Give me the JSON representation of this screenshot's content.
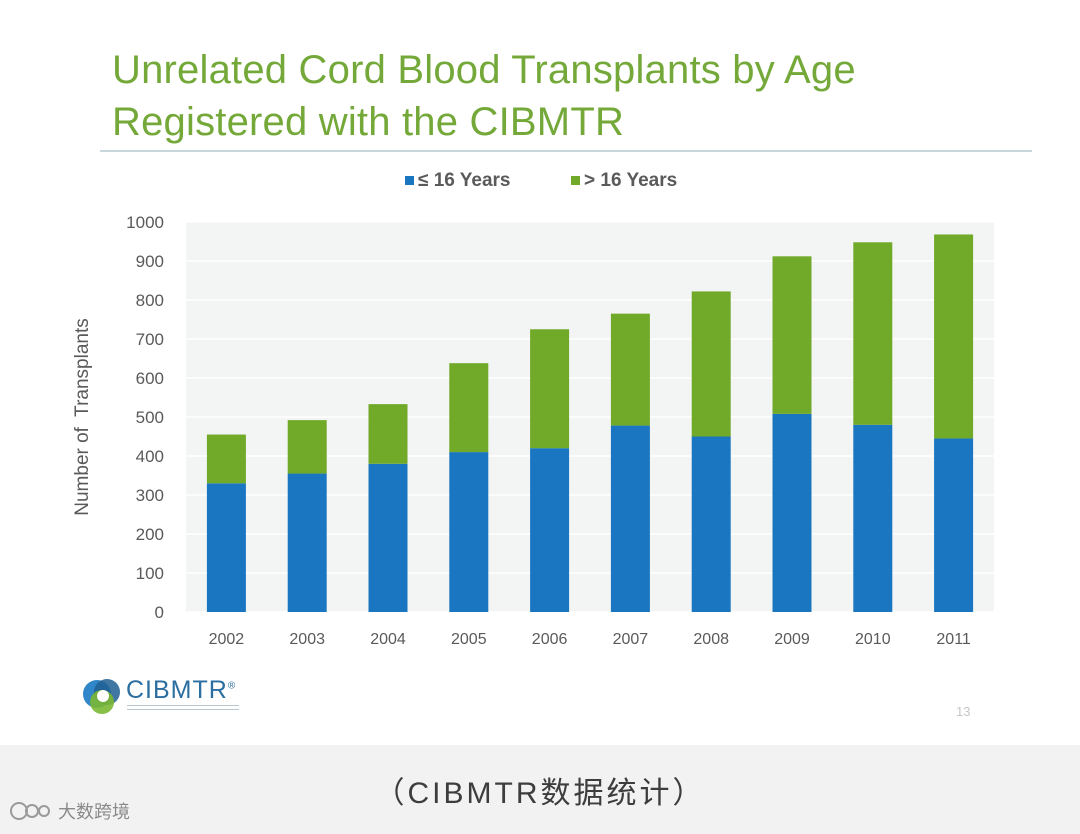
{
  "slide": {
    "title_line1": "Unrelated Cord Blood Transplants by Age",
    "title_line2": "Registered with the CIBMTR",
    "page_number": "13",
    "logo_text": "CIBMTR",
    "logo_registered": "®"
  },
  "caption": "（CIBMTR数据统计）",
  "watermark": "大数跨境",
  "colors": {
    "series1": "#1a76c1",
    "series2": "#71a928",
    "title": "#74a93a"
  },
  "chart_data": {
    "type": "bar",
    "stacked": true,
    "title": "Unrelated Cord Blood Transplants by Age Registered with the CIBMTR",
    "xlabel": "",
    "ylabel": "Number of  Transplants",
    "ylim": [
      0,
      1000
    ],
    "yticks": [
      0,
      100,
      200,
      300,
      400,
      500,
      600,
      700,
      800,
      900,
      1000
    ],
    "grid": true,
    "legend_position": "top-center",
    "categories": [
      "2002",
      "2003",
      "2004",
      "2005",
      "2006",
      "2007",
      "2008",
      "2009",
      "2010",
      "2011"
    ],
    "series": [
      {
        "name": "≤ 16 Years",
        "color": "#1a76c1",
        "values": [
          330,
          355,
          380,
          410,
          420,
          478,
          450,
          508,
          480,
          445
        ]
      },
      {
        "name": "> 16 Years",
        "color": "#71a928",
        "values": [
          125,
          137,
          153,
          228,
          305,
          287,
          372,
          404,
          468,
          523
        ]
      }
    ]
  }
}
